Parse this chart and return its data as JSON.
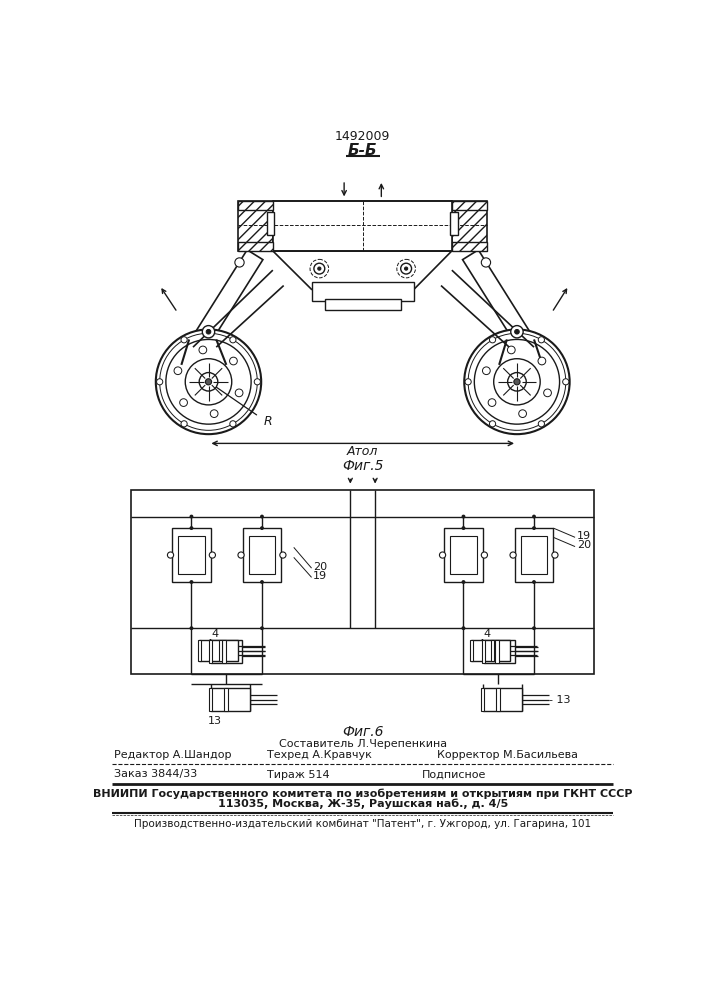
{
  "patent_number": "1492009",
  "section_label": "Б-Б",
  "fig5_label": "Фиг.5",
  "fig6_label": "Фиг.6",
  "composer": "Составитель Л.Черепенкина",
  "editor": "Редактор А.Шандор",
  "techred": "Техред А.Кравчук",
  "corrector": "Корректор М.Басильева",
  "order": "Заказ 3844/33",
  "tirazh": "Тираж 514",
  "podpisnoe": "Подписное",
  "vniIPI_line1": "ВНИИПИ Государственного комитета по изобретениям и открытиям при ГКНТ СССР",
  "vniIPI_line2": "113035, Москва, Ж-35, Раушская наб., д. 4/5",
  "publisher": "Производственно-издательский комбинат \"Патент\", г. Ужгород, ул. Гагарина, 101",
  "bg_color": "#ffffff",
  "line_color": "#1a1a1a",
  "text_color": "#1a1a1a",
  "Atol_label": "Атол",
  "R_label": "R",
  "label_4": "4",
  "label_13": "13",
  "label_19": "19",
  "label_20": "20"
}
